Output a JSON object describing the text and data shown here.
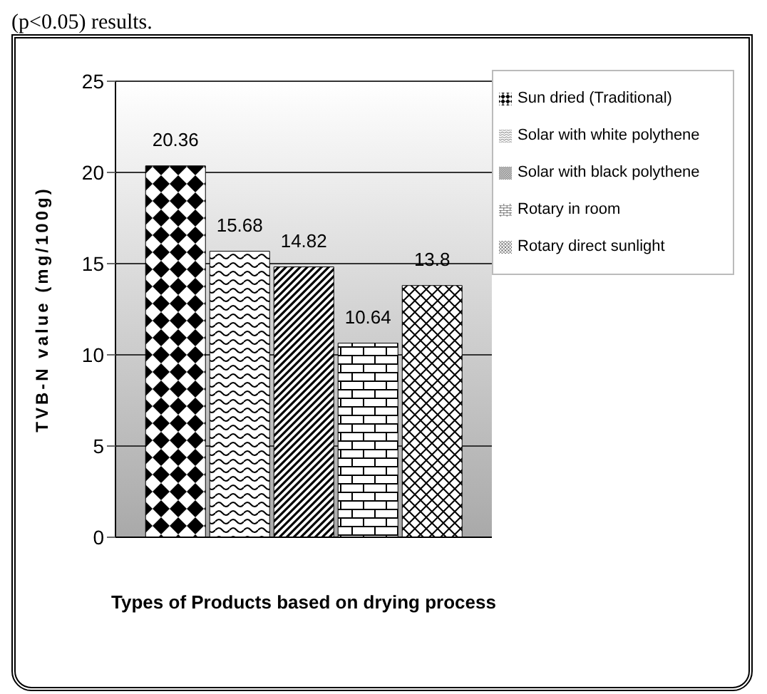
{
  "chart_data": {
    "type": "bar",
    "xlabel": "Types of Products based on drying process",
    "ylabel": "TVB-N value (mg/100g)",
    "annotations": [
      "(p<0.05) results."
    ],
    "categories": [
      null
    ],
    "series": [
      {
        "name": "Sun dried (Traditional)",
        "color": "#000000",
        "values": [
          20.36
        ]
      },
      {
        "name": "Solar with white polythene",
        "color": "#000000",
        "values": [
          15.68
        ]
      },
      {
        "name": "Solar with black polythene",
        "color": "#000000",
        "values": [
          14.82
        ]
      },
      {
        "name": "Rotary in room",
        "color": "#000000",
        "values": [
          10.64
        ]
      },
      {
        "name": "Rotary direct sunlight",
        "color": "#000000",
        "values": [
          13.8
        ]
      }
    ],
    "ylim": [
      0,
      25
    ],
    "yticks": [
      0,
      5,
      10,
      15,
      20,
      25
    ],
    "grid": "y",
    "legend": "right",
    "data_labels": true
  }
}
